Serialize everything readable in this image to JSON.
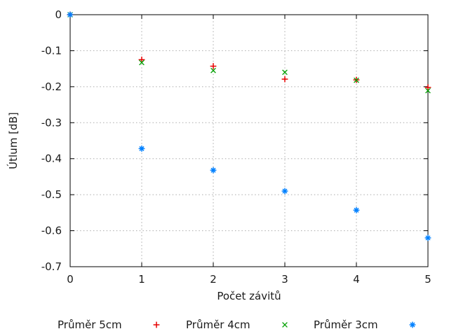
{
  "chart_data": {
    "type": "scatter",
    "title": "",
    "xlabel": "Počet závitů",
    "ylabel": "Útlum [dB]",
    "xlim": [
      0,
      5
    ],
    "ylim": [
      -0.7,
      0
    ],
    "xticks": [
      0,
      1,
      2,
      3,
      4,
      5
    ],
    "xtick_labels": [
      "0",
      "1",
      "2",
      "3",
      "4",
      "5"
    ],
    "yticks": [
      0,
      -0.1,
      -0.2,
      -0.3,
      -0.4,
      -0.5,
      -0.6,
      -0.7
    ],
    "ytick_labels": [
      "0",
      "-0.1",
      "-0.2",
      "-0.3",
      "-0.4",
      "-0.5",
      "-0.6",
      "-0.7"
    ],
    "grid": true,
    "grid_style": "dotted",
    "legend_position": "bottom",
    "x": [
      0,
      1,
      2,
      3,
      4,
      5
    ],
    "series": [
      {
        "name": "Průměr 5cm",
        "marker": "plus",
        "color": "#e60000",
        "values": [
          0,
          -0.125,
          -0.143,
          -0.179,
          -0.181,
          -0.202
        ]
      },
      {
        "name": "Průměr 4cm",
        "marker": "cross",
        "color": "#00a000",
        "values": [
          0,
          -0.133,
          -0.155,
          -0.16,
          -0.182,
          -0.211
        ]
      },
      {
        "name": "Průměr 3cm",
        "marker": "asterisk",
        "color": "#0080ff",
        "values": [
          0,
          -0.372,
          -0.432,
          -0.49,
          -0.543,
          -0.62
        ]
      }
    ],
    "colors": {
      "background": "#ffffff",
      "border": "#000000",
      "gridline": "#aaaaaa",
      "text": "#1a1a1a"
    }
  }
}
